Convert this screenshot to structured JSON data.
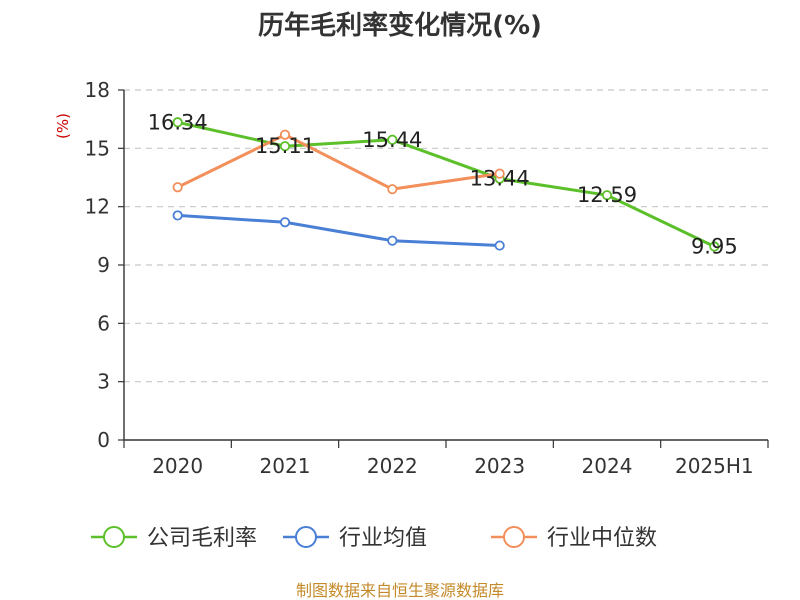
{
  "chart_data": {
    "type": "line",
    "title": "历年毛利率变化情况(%)",
    "ylabel": "(%)",
    "xlabel": "",
    "categories": [
      "2020",
      "2021",
      "2022",
      "2023",
      "2024",
      "2025H1"
    ],
    "ylim": [
      0,
      18
    ],
    "yticks": [
      0,
      3,
      6,
      9,
      12,
      15,
      18
    ],
    "grid": true,
    "legend_position": "bottom",
    "series": [
      {
        "name": "公司毛利率",
        "color": "#5cc02a",
        "values": [
          16.34,
          15.11,
          15.44,
          13.44,
          12.59,
          9.95
        ],
        "labels": [
          "16.34",
          "15.11",
          "15.44",
          "13.44",
          "12.59",
          "9.95"
        ]
      },
      {
        "name": "行业均值",
        "color": "#4a7fd6",
        "values": [
          11.55,
          11.2,
          10.25,
          10.0,
          null,
          null
        ]
      },
      {
        "name": "行业中位数",
        "color": "#f28f5a",
        "values": [
          13.0,
          15.7,
          12.9,
          13.7,
          null,
          null
        ]
      }
    ]
  },
  "footer": {
    "source": "制图数据来自恒生聚源数据库"
  }
}
